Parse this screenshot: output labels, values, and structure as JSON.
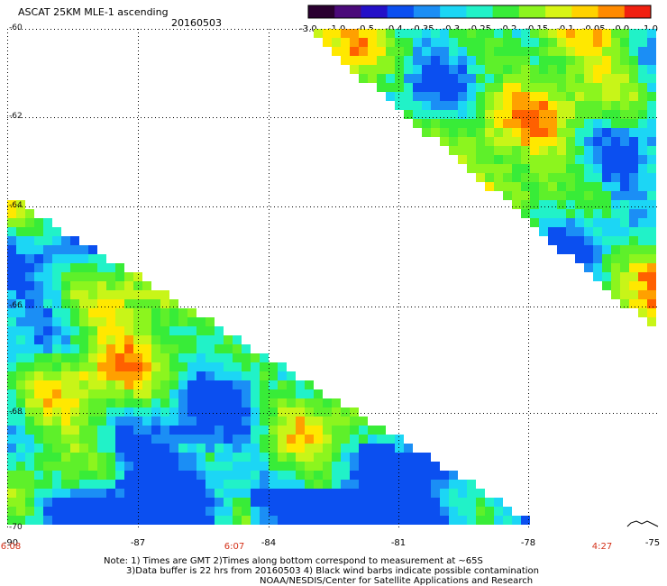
{
  "header": {
    "title": "ASCAT 25KM MLE-1 ascending",
    "date": "20160503"
  },
  "colorbar": {
    "labels": [
      "-3.0",
      "-1.0",
      "-0.5",
      "-0.4",
      "-0.35",
      "-0.3",
      "-0.25",
      "-0.2",
      "-0.15",
      "-0.1",
      "-0.05",
      "0.0",
      "1.0"
    ],
    "colors": [
      "#2a0030",
      "#4b0a7a",
      "#2410c8",
      "#0b4ff0",
      "#1b8ef5",
      "#1cd6f5",
      "#21f2c8",
      "#38ec38",
      "#8cf51e",
      "#d8f514",
      "#ffd200",
      "#ff8a00",
      "#f02010"
    ]
  },
  "map": {
    "lat_labels": [
      "-60",
      "-62",
      "-64",
      "-66",
      "-68",
      "-70"
    ],
    "lon_labels": [
      "-90",
      "-87",
      "-84",
      "-81",
      "-78",
      "-75"
    ],
    "time_labels": [
      "6:08",
      "6:07",
      "4:27"
    ]
  },
  "notes": {
    "line1": "Note: 1) Times are GMT 2)Times along bottom correspond to measurement at ~65S",
    "line2": "3)Data buffer is 22 hrs from 20160503 4) Black wind barbs indicate possible contamination",
    "line3": "NOAA/NESDIS/Center for Satellite Applications and Research"
  }
}
